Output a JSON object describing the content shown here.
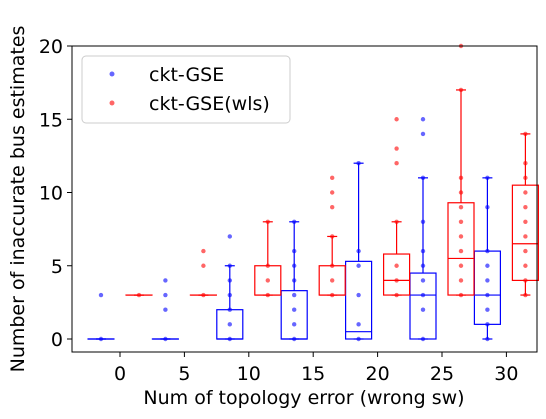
{
  "chart_data": {
    "type": "box",
    "xlabel": "Num of topology error (wrong sw)",
    "ylabel": "Number of inaccurate bus estimates",
    "ylim": [
      -1,
      20
    ],
    "yticks": [
      0,
      5,
      10,
      15,
      20
    ],
    "categories": [
      0,
      5,
      10,
      15,
      20,
      25,
      30
    ],
    "legend_position": "upper-left",
    "series": [
      {
        "name": "ckt-GSE",
        "color": "#0000ff",
        "boxes": [
          {
            "x": 0,
            "q1": 0,
            "median": 0,
            "q3": 0,
            "whisker_low": 0,
            "whisker_high": 0,
            "points": [
              0,
              3
            ]
          },
          {
            "x": 5,
            "q1": 0,
            "median": 0,
            "q3": 0,
            "whisker_low": 0,
            "whisker_high": 0,
            "points": [
              0,
              2,
              3,
              4
            ]
          },
          {
            "x": 10,
            "q1": 0,
            "median": 0,
            "q3": 2,
            "whisker_low": 0,
            "whisker_high": 5,
            "points": [
              0,
              1,
              2,
              3,
              4,
              5,
              7
            ]
          },
          {
            "x": 15,
            "q1": 0,
            "median": 0,
            "q3": 3.3,
            "whisker_low": 0,
            "whisker_high": 8,
            "points": [
              0,
              1,
              2,
              3,
              4,
              5,
              6,
              8
            ]
          },
          {
            "x": 20,
            "q1": 0,
            "median": 0.5,
            "q3": 5.3,
            "whisker_low": 0,
            "whisker_high": 12,
            "points": [
              0,
              1,
              3,
              5,
              6,
              12
            ]
          },
          {
            "x": 25,
            "q1": 0,
            "median": 3,
            "q3": 4.5,
            "whisker_low": 0,
            "whisker_high": 11,
            "points": [
              0,
              2,
              3,
              4,
              5,
              6,
              8,
              11,
              14,
              15
            ]
          },
          {
            "x": 30,
            "q1": 1,
            "median": 3,
            "q3": 6,
            "whisker_low": 0,
            "whisker_high": 11,
            "points": [
              0,
              1,
              2,
              3,
              4,
              5,
              6,
              9,
              11
            ]
          }
        ]
      },
      {
        "name": "ckt-GSE(wls)",
        "color": "#ff0000",
        "boxes": [
          {
            "x": 0,
            "q1": 3,
            "median": 3,
            "q3": 3,
            "whisker_low": 3,
            "whisker_high": 3,
            "points": [
              3
            ]
          },
          {
            "x": 5,
            "q1": 3,
            "median": 3,
            "q3": 3,
            "whisker_low": 3,
            "whisker_high": 3,
            "points": [
              3,
              5,
              6
            ]
          },
          {
            "x": 10,
            "q1": 3,
            "median": 3,
            "q3": 5,
            "whisker_low": 3,
            "whisker_high": 8,
            "points": [
              3,
              4,
              5,
              8
            ]
          },
          {
            "x": 15,
            "q1": 3,
            "median": 3,
            "q3": 5,
            "whisker_low": 3,
            "whisker_high": 7,
            "points": [
              3,
              4,
              5,
              7,
              9,
              10,
              11
            ]
          },
          {
            "x": 20,
            "q1": 3,
            "median": 4,
            "q3": 5.8,
            "whisker_low": 3,
            "whisker_high": 8,
            "points": [
              3,
              4,
              5,
              8,
              12,
              13,
              15
            ]
          },
          {
            "x": 25,
            "q1": 3,
            "median": 5.5,
            "q3": 9.3,
            "whisker_low": 3,
            "whisker_high": 17,
            "points": [
              3,
              4,
              5,
              6,
              7,
              8,
              9,
              10,
              11,
              17,
              20
            ]
          },
          {
            "x": 30,
            "q1": 4,
            "median": 6.5,
            "q3": 10.5,
            "whisker_low": 3,
            "whisker_high": 14,
            "points": [
              3,
              4,
              5,
              6,
              7,
              8,
              9,
              10,
              11,
              12,
              14
            ]
          }
        ]
      }
    ]
  }
}
